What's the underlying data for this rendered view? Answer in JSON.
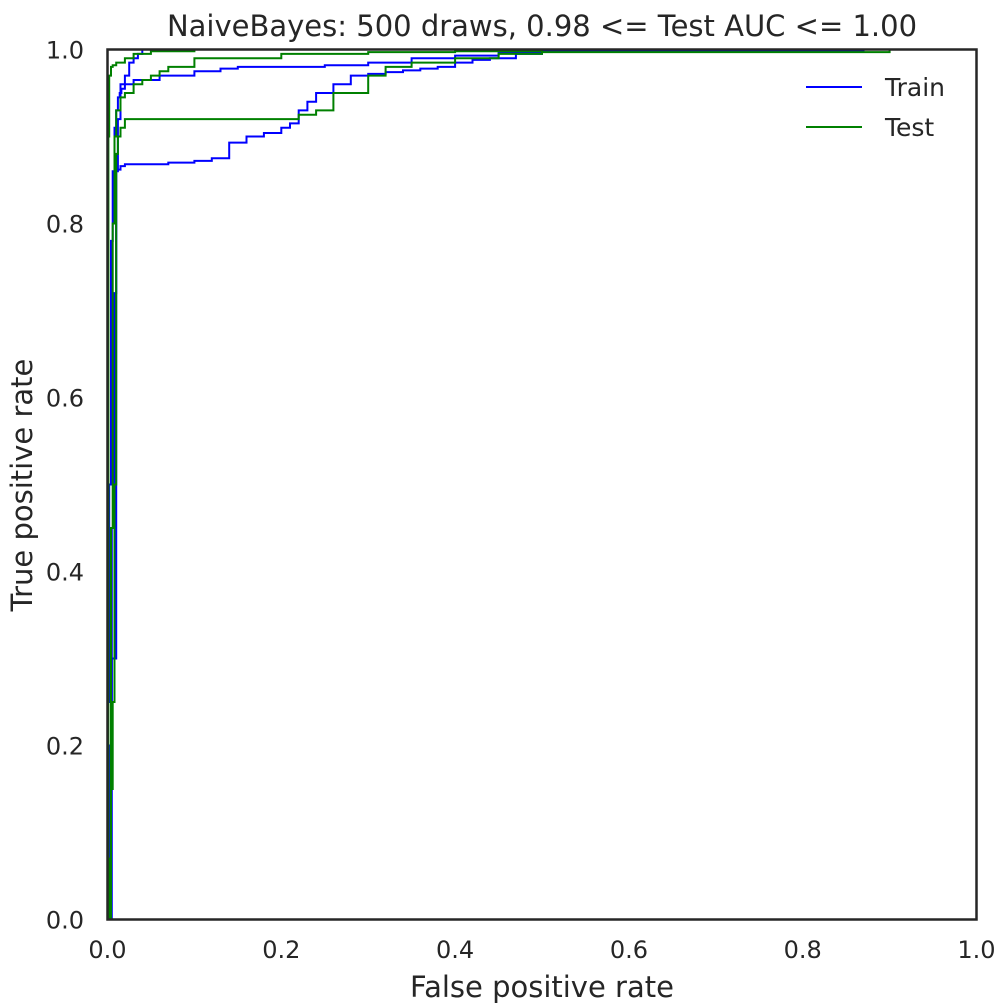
{
  "chart_data": {
    "type": "line",
    "title": "NaiveBayes: 500 draws, 0.98 <= Test AUC <= 1.00",
    "xlabel": "False positive rate",
    "ylabel": "True positive rate",
    "xlim": [
      0,
      1
    ],
    "ylim": [
      0,
      1
    ],
    "xticks": [
      "0.0",
      "0.2",
      "0.4",
      "0.6",
      "0.8",
      "1.0"
    ],
    "yticks": [
      "0.0",
      "0.2",
      "0.4",
      "0.6",
      "0.8",
      "1.0"
    ],
    "grid": false,
    "legend_position": "top-right",
    "legend": [
      {
        "label": "Train",
        "color": "#0000ff"
      },
      {
        "label": "Test",
        "color": "#008000"
      }
    ],
    "series": [
      {
        "name": "Train",
        "color": "#0000ff",
        "x": [
          0,
          0,
          0.002,
          0.002,
          0.004,
          0.004,
          0.006,
          0.008,
          0.01,
          0.012,
          0.012,
          0.014,
          0.016,
          0.02,
          0.03,
          0.06,
          0.1,
          0.13,
          0.15,
          0.2,
          0.25,
          0.3,
          0.35,
          0.4,
          0.45,
          0.5,
          0.87
        ],
        "y": [
          0,
          0.25,
          0.48,
          0.5,
          0.51,
          0.78,
          0.86,
          0.91,
          0.93,
          0.94,
          0.945,
          0.95,
          0.955,
          0.96,
          0.965,
          0.97,
          0.975,
          0.978,
          0.98,
          0.98,
          0.982,
          0.985,
          0.99,
          0.993,
          0.996,
          0.998,
          1.0
        ]
      },
      {
        "name": "Train",
        "color": "#0000ff",
        "x": [
          0,
          0.003,
          0.005,
          0.008,
          0.01,
          0.012,
          0.015,
          0.02,
          0.025,
          0.03,
          0.035,
          0.04,
          0.1,
          0.2,
          0.3,
          0.4,
          0.5
        ],
        "y": [
          0,
          0.2,
          0.45,
          0.72,
          0.86,
          0.92,
          0.96,
          0.97,
          0.985,
          0.99,
          0.995,
          1.0,
          1.0,
          1.0,
          1.0,
          1.0,
          1.0
        ]
      },
      {
        "name": "Train",
        "color": "#0000ff",
        "x": [
          0,
          0.005,
          0.01,
          0.015,
          0.02,
          0.03,
          0.05,
          0.07,
          0.1,
          0.12,
          0.14,
          0.16,
          0.18,
          0.2,
          0.21,
          0.22,
          0.23,
          0.24,
          0.26,
          0.28,
          0.3,
          0.32,
          0.34,
          0.36,
          0.38,
          0.4,
          0.42,
          0.44,
          0.47,
          0.5,
          0.55
        ],
        "y": [
          0,
          0.3,
          0.862,
          0.866,
          0.868,
          0.868,
          0.868,
          0.87,
          0.872,
          0.875,
          0.893,
          0.9,
          0.904,
          0.91,
          0.915,
          0.93,
          0.94,
          0.95,
          0.96,
          0.97,
          0.972,
          0.974,
          0.976,
          0.978,
          0.98,
          0.985,
          0.988,
          0.99,
          0.995,
          0.998,
          1.0
        ]
      },
      {
        "name": "Test",
        "color": "#008000",
        "x": [
          0,
          0.004,
          0.006,
          0.008,
          0.01,
          0.012,
          0.015,
          0.02,
          0.1,
          0.2,
          0.22,
          0.24,
          0.26,
          0.3,
          0.32,
          0.35,
          0.4,
          0.45,
          0.5,
          0.9
        ],
        "y": [
          0,
          0.15,
          0.25,
          0.5,
          0.88,
          0.9,
          0.91,
          0.92,
          0.92,
          0.92,
          0.925,
          0.93,
          0.95,
          0.97,
          0.98,
          0.985,
          0.99,
          0.995,
          0.997,
          1.0
        ]
      },
      {
        "name": "Test",
        "color": "#008000",
        "x": [
          0,
          0.002,
          0.004,
          0.006,
          0.008,
          0.01,
          0.015,
          0.02,
          0.03,
          0.04,
          0.05,
          0.06,
          0.07,
          0.1,
          0.2,
          0.3,
          0.4,
          0.5
        ],
        "y": [
          0,
          0.07,
          0.45,
          0.8,
          0.9,
          0.93,
          0.945,
          0.95,
          0.96,
          0.965,
          0.97,
          0.975,
          0.98,
          0.99,
          0.995,
          0.997,
          0.998,
          1.0
        ]
      },
      {
        "name": "Test",
        "color": "#008000",
        "x": [
          0,
          0.001,
          0.002,
          0.004,
          0.006,
          0.01,
          0.02,
          0.03,
          0.05,
          0.1,
          0.3,
          0.9
        ],
        "y": [
          0,
          0.9,
          0.97,
          0.98,
          0.982,
          0.985,
          0.99,
          0.995,
          0.998,
          1.0,
          1.0,
          1.0
        ]
      }
    ]
  }
}
